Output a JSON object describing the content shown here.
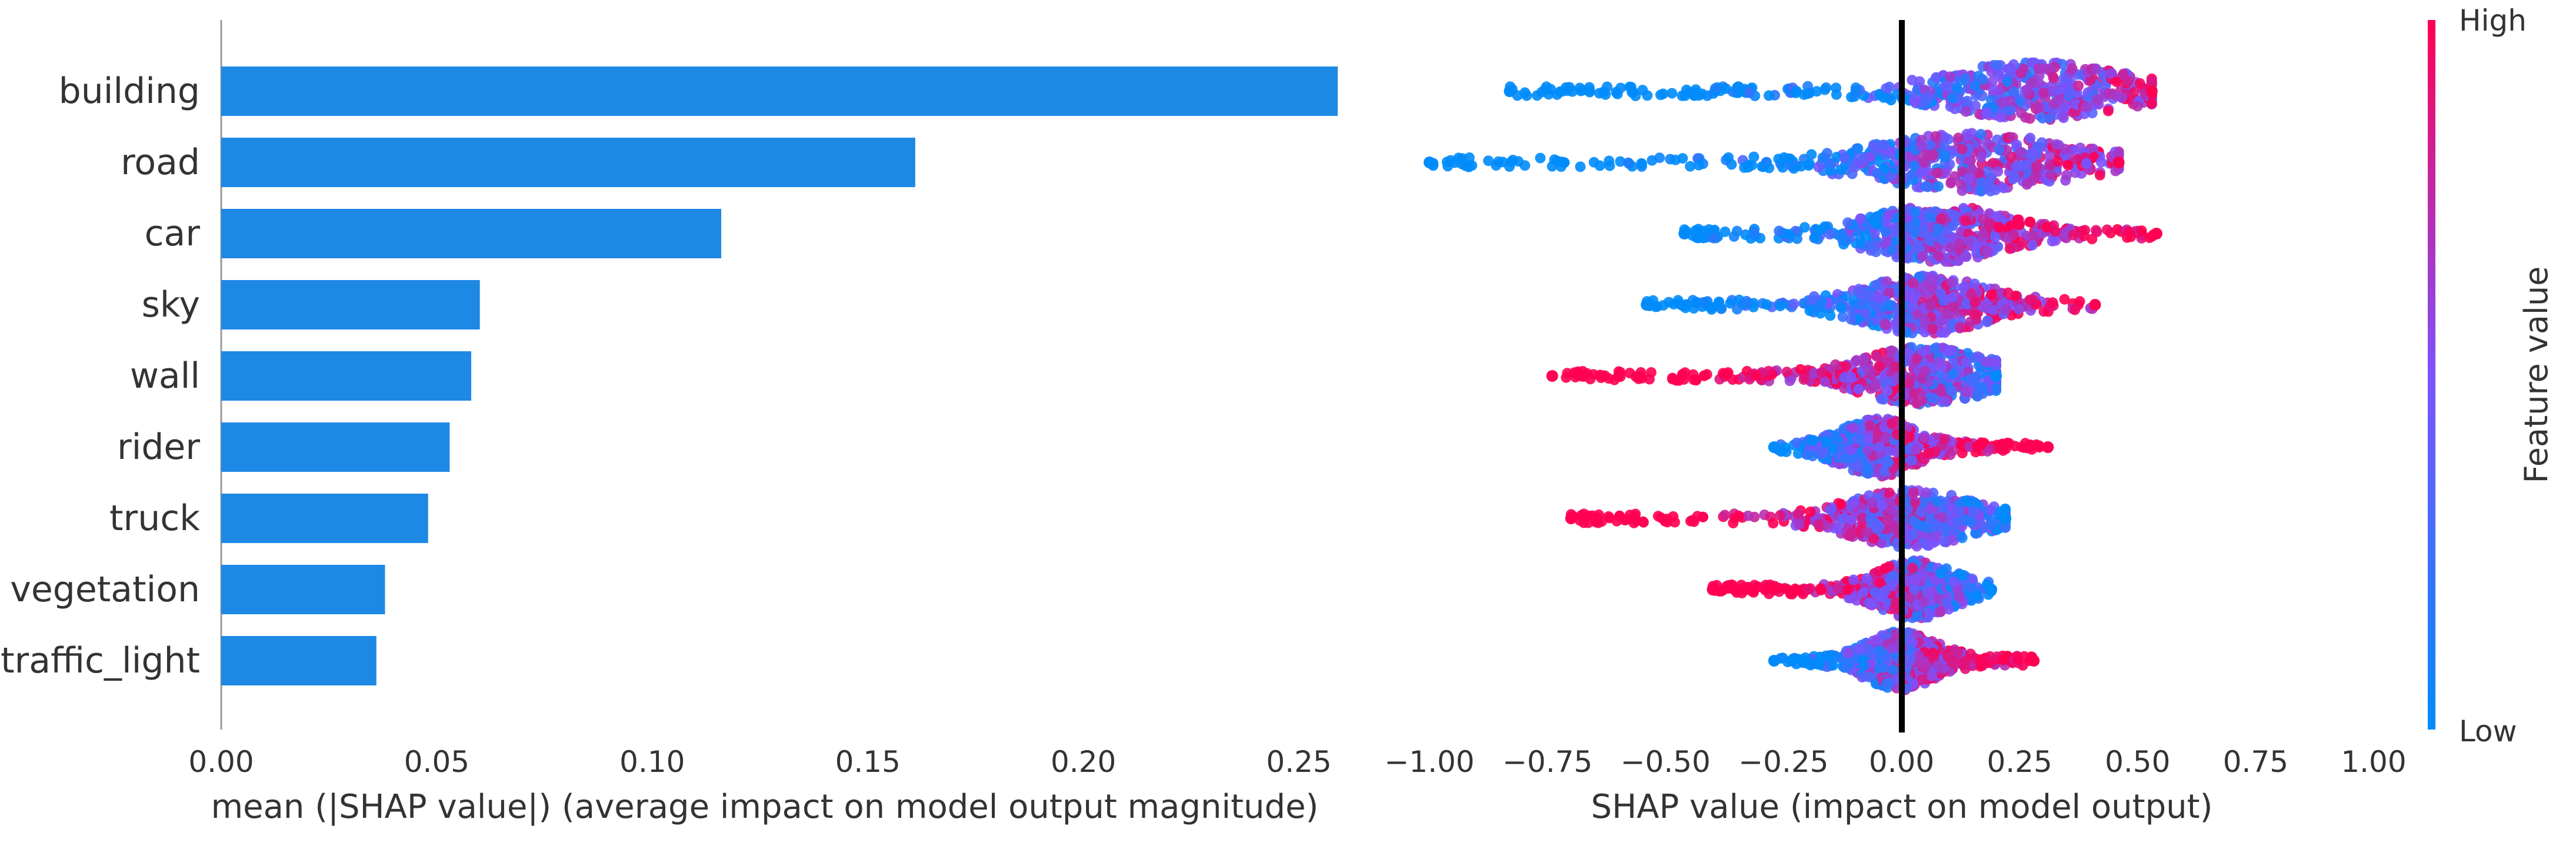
{
  "chart_data": [
    {
      "type": "bar",
      "orientation": "horizontal",
      "categories": [
        "building",
        "road",
        "car",
        "sky",
        "wall",
        "rider",
        "truck",
        "vegetation",
        "traffic_light"
      ],
      "values": [
        0.259,
        0.161,
        0.116,
        0.06,
        0.058,
        0.053,
        0.048,
        0.038,
        0.036
      ],
      "xlabel": "mean  (|SHAP value|) (average impact on model output magnitude)",
      "xlim": [
        0.0,
        0.265
      ],
      "xticks": [
        "0.00",
        "0.05",
        "0.10",
        "0.15",
        "0.20",
        "0.25"
      ],
      "bar_color": "#1E88E5",
      "grid": false
    },
    {
      "type": "scatter",
      "subtype": "beeswarm",
      "categories": [
        "building",
        "road",
        "car",
        "sky",
        "wall",
        "rider",
        "truck",
        "vegetation",
        "traffic_light"
      ],
      "ranges": [
        {
          "name": "building",
          "min": -0.83,
          "max": 0.53,
          "peak": 0.28
        },
        {
          "name": "road",
          "min": -1.0,
          "max": 0.46,
          "peak": 0.15
        },
        {
          "name": "car",
          "min": -0.46,
          "max": 0.54,
          "peak": 0.08
        },
        {
          "name": "sky",
          "min": -0.54,
          "max": 0.41,
          "peak": 0.05
        },
        {
          "name": "wall",
          "min": -0.74,
          "max": 0.2,
          "peak": 0.05
        },
        {
          "name": "rider",
          "min": -0.27,
          "max": 0.31,
          "peak": -0.05
        },
        {
          "name": "truck",
          "min": -0.7,
          "max": 0.22,
          "peak": 0.02
        },
        {
          "name": "vegetation",
          "min": -0.4,
          "max": 0.19,
          "peak": 0.03
        },
        {
          "name": "traffic_light",
          "min": -0.27,
          "max": 0.28,
          "peak": 0.0
        }
      ],
      "xlabel": "SHAP value (impact on model output)",
      "xlim": [
        -1.0,
        1.0
      ],
      "xticks": [
        "−1.00",
        "−0.75",
        "−0.50",
        "−0.25",
        "0.00",
        "0.25",
        "0.50",
        "0.75",
        "1.00"
      ],
      "colorbar": {
        "label": "Feature value",
        "high_label": "High",
        "low_label": "Low",
        "high_color": "#FF0052",
        "mid_color": "#7C52FF",
        "low_color": "#008BFB"
      },
      "grid": false
    }
  ]
}
